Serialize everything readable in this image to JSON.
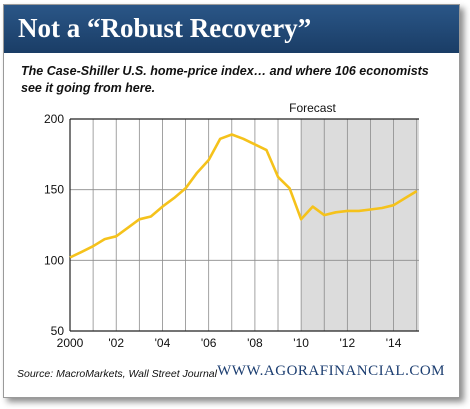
{
  "header": {
    "title": "Not a “Robust Recovery”"
  },
  "subtitle": "The Case-Shiller U.S. home-price index… and where 106 economists see it going from here.",
  "source": "Source: MacroMarkets, Wall Street Journal",
  "site": "WWW.AGORAFINANCIAL.COM",
  "colors": {
    "header": "#1f4a78",
    "line": "#f5c21b",
    "forecast_shade": "#dcdcdc",
    "grid": "#8c8c8c"
  },
  "chart_data": {
    "type": "line",
    "title": "",
    "xlabel": "",
    "ylabel": "",
    "xlim": [
      2000,
      2015.1
    ],
    "ylim": [
      50,
      200
    ],
    "xticks": [
      2000,
      2002,
      2004,
      2006,
      2008,
      2010,
      2012,
      2014
    ],
    "xtick_labels": [
      "2000",
      "'02",
      "'04",
      "'06",
      "'08",
      "'10",
      "'12",
      "'14"
    ],
    "yticks": [
      50,
      100,
      150,
      200
    ],
    "ytick_labels": [
      "50",
      "100",
      "150",
      "200"
    ],
    "grid": "vertical lines at each year",
    "forecast": {
      "label": "Forecast",
      "start": 2010
    },
    "series": [
      {
        "x": [
          2000.0,
          2000.5,
          2001.0,
          2001.5,
          2002.0,
          2002.5,
          2003.0,
          2003.5,
          2004.0,
          2004.5,
          2005.0,
          2005.5,
          2006.0,
          2006.5,
          2007.0,
          2007.5,
          2008.0,
          2008.5,
          2009.0,
          2009.5,
          2010.0,
          2010.5,
          2011.0,
          2011.5,
          2012.0,
          2012.5,
          2013.0,
          2013.5,
          2014.0,
          2014.5,
          2015.0
        ],
        "values": [
          102,
          106,
          110,
          115,
          117,
          123,
          129,
          131,
          138,
          144,
          151,
          162,
          171,
          186,
          189,
          186,
          182,
          178,
          159,
          151,
          129,
          138,
          132,
          134,
          135,
          135,
          136,
          137,
          139,
          144,
          149
        ]
      }
    ]
  }
}
